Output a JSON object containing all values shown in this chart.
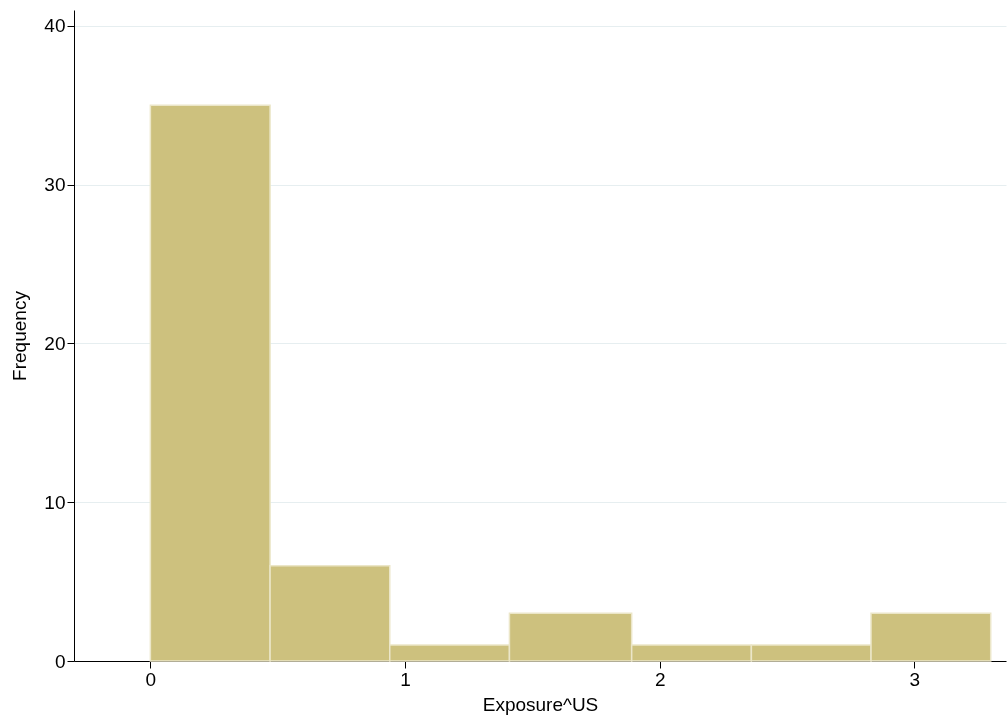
{
  "chart_data": {
    "type": "histogram",
    "xlabel": "Exposure^US",
    "ylabel": "Frequency",
    "bins": [
      0,
      0.47,
      0.94,
      1.41,
      1.89,
      2.36,
      2.83,
      3.3
    ],
    "values": [
      35,
      6,
      1,
      3,
      1,
      1,
      3
    ],
    "color": "#cdc17e",
    "xlim": [
      -0.3,
      3.36
    ],
    "xticks": [
      0,
      1,
      2,
      3
    ],
    "ylim": [
      0,
      41
    ],
    "yticks": [
      0,
      10,
      20,
      30,
      40
    ],
    "grid": "y"
  }
}
